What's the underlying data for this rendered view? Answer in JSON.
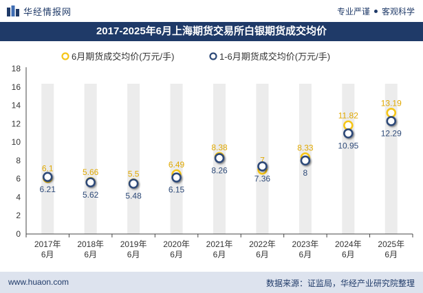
{
  "header": {
    "brand": "华经情报网",
    "tagline_left": "专业严谨",
    "tagline_right": "客观科学"
  },
  "footer": {
    "website": "www.huaon.com",
    "source": "数据来源：证监局，华经产业研究院整理"
  },
  "colors": {
    "navy": "#1f3a68",
    "series1": "#f5c518",
    "series2": "#2e4a78",
    "band": "#ececec"
  },
  "chart_data": {
    "type": "line",
    "title": "2017-2025年6月上海期货交易所白银期货成交均价",
    "categories": [
      "2017年6月",
      "2018年6月",
      "2019年6月",
      "2020年6月",
      "2021年6月",
      "2022年6月",
      "2023年6月",
      "2024年6月",
      "2025年6月"
    ],
    "category_lines": [
      [
        "2017年",
        "6月"
      ],
      [
        "2018年",
        "6月"
      ],
      [
        "2019年",
        "6月"
      ],
      [
        "2020年",
        "6月"
      ],
      [
        "2021年",
        "6月"
      ],
      [
        "2022年",
        "6月"
      ],
      [
        "2023年",
        "6月"
      ],
      [
        "2024年",
        "6月"
      ],
      [
        "2025年",
        "6月"
      ]
    ],
    "series": [
      {
        "name": "6月期货成交均价(万元/手)",
        "values": [
          6.1,
          5.66,
          5.5,
          6.49,
          8.38,
          7,
          8.33,
          11.82,
          13.19
        ],
        "labels": [
          "6.1",
          "5.66",
          "5.5",
          "6.49",
          "8.38",
          "7",
          "8.33",
          "11.82",
          "13.19"
        ]
      },
      {
        "name": "1-6月期货成交均价(万元/手)",
        "values": [
          6.21,
          5.62,
          5.48,
          6.15,
          8.26,
          7.36,
          8,
          10.95,
          12.29
        ],
        "labels": [
          "6.21",
          "5.62",
          "5.48",
          "6.15",
          "8.26",
          "7.36",
          "8",
          "10.95",
          "12.29"
        ]
      }
    ],
    "yticks": [
      "0",
      "2",
      "4",
      "6",
      "8",
      "10",
      "12",
      "14",
      "16",
      "18"
    ],
    "ylim": [
      0,
      18
    ],
    "legend_position": "top-center",
    "grid": false,
    "column_bands": true
  }
}
